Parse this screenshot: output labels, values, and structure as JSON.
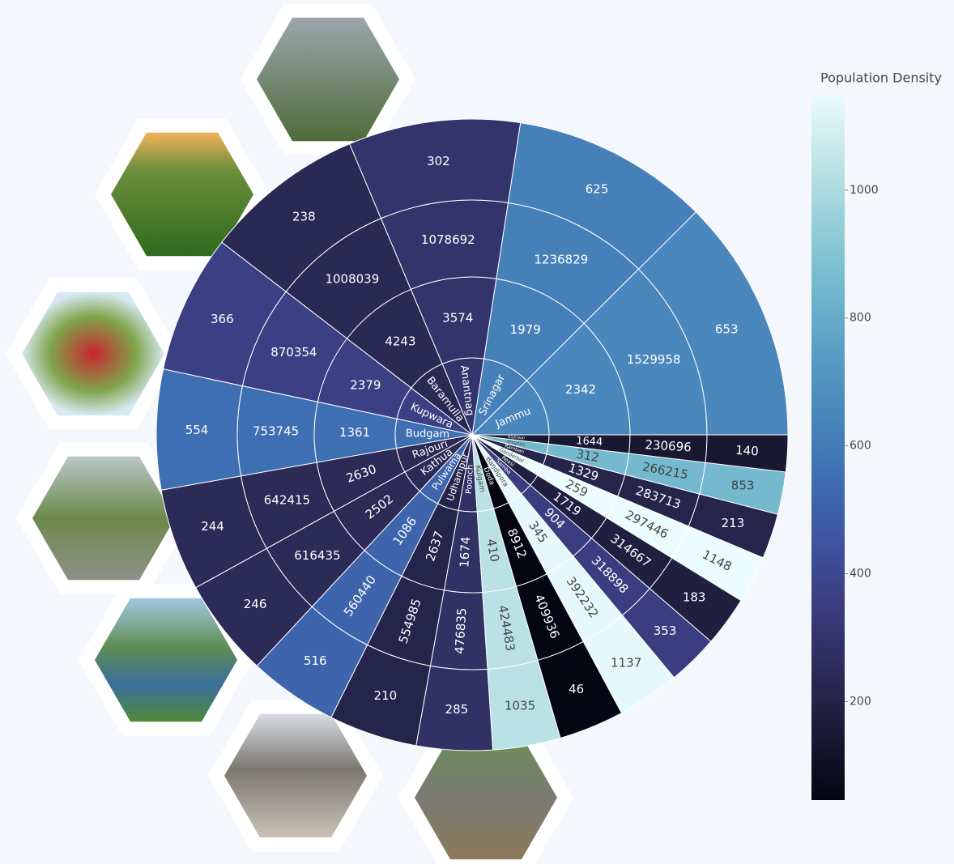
{
  "chart_data": {
    "type": "sunburst",
    "categories": [
      "Jammu",
      "Srinagar",
      "Anantnag",
      "Baramulla",
      "Kupwara",
      "Budgam",
      "Rajouri",
      "Kathua",
      "Pulwama",
      "Udhampur",
      "Poonch",
      "Kulgam",
      "Doda",
      "Bandipora",
      "Samba",
      "Reasi",
      "Ganderbal",
      "Ramban",
      "Shopian",
      "Kishtwar"
    ],
    "area": [
      2342,
      1979,
      3574,
      4243,
      2379,
      1361,
      2630,
      2502,
      1086,
      2637,
      1674,
      410,
      8912,
      345,
      904,
      1719,
      259,
      1329,
      312,
      1644
    ],
    "population": [
      1529958,
      1236829,
      1078692,
      1008039,
      870354,
      753745,
      642415,
      616435,
      560440,
      554985,
      476835,
      424483,
      409936,
      392232,
      318898,
      314667,
      297446,
      283713,
      266215,
      230696
    ],
    "density": [
      653,
      625,
      302,
      238,
      366,
      554,
      244,
      246,
      516,
      210,
      285,
      1035,
      46,
      1137,
      353,
      183,
      1148,
      213,
      853,
      140
    ],
    "colorscale": [
      "#030512",
      "#191933",
      "#2c2a57",
      "#3a3c7d",
      "#3e53a0",
      "#3e6db2",
      "#4886bb",
      "#599fc4",
      "#72b8cd",
      "#95cfd8",
      "#c0e5e8",
      "#eafcfd"
    ],
    "colorbar": {
      "title": "Population Density",
      "ticks": [
        200,
        400,
        600,
        800,
        1000
      ]
    }
  }
}
